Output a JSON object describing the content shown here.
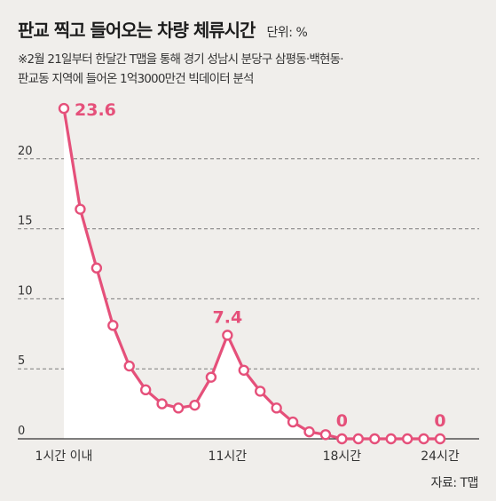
{
  "header": {
    "title": "판교 찍고 들어오는 차량 체류시간",
    "unit": "단위: %"
  },
  "note": {
    "line1": "※2월 21일부터 한달간 T맵을 통해 경기 성남시 분당구 삼평동·백현동·",
    "line2": "판교동 지역에 들어온 1억3000만건 빅데이터 분석"
  },
  "source": "자료: T맵",
  "colors": {
    "line": "#e5507a",
    "area": "#ffffff",
    "background": "#f0eeeb",
    "axis": "#333333"
  },
  "chart_data": {
    "type": "line",
    "title": "판교 찍고 들어오는 차량 체류시간",
    "ylabel": "단위: %",
    "xlabel": "",
    "ylim": [
      0,
      25
    ],
    "yticks": [
      0,
      5,
      10,
      15,
      20
    ],
    "grid": "horizontal dashed",
    "x": [
      1,
      2,
      3,
      4,
      5,
      6,
      7,
      8,
      9,
      10,
      11,
      12,
      13,
      14,
      15,
      16,
      17,
      18,
      19,
      20,
      21,
      22,
      23,
      24
    ],
    "xtick_labels": [
      {
        "x": 1,
        "label": "1시간 이내"
      },
      {
        "x": 11,
        "label": "11시간"
      },
      {
        "x": 18,
        "label": "18시간"
      },
      {
        "x": 24,
        "label": "24시간"
      }
    ],
    "series": [
      {
        "values": [
          23.6,
          16.4,
          12.2,
          8.1,
          5.2,
          3.5,
          2.5,
          2.2,
          2.4,
          4.4,
          7.4,
          4.9,
          3.4,
          2.2,
          1.2,
          0.5,
          0.3,
          0.0,
          0.0,
          0.0,
          0.0,
          0.0,
          0.0,
          0.0
        ]
      }
    ],
    "data_labels": [
      {
        "x": 1,
        "text": "23.6"
      },
      {
        "x": 11,
        "text": "7.4"
      },
      {
        "x": 18,
        "text": "0"
      },
      {
        "x": 24,
        "text": "0"
      }
    ]
  }
}
